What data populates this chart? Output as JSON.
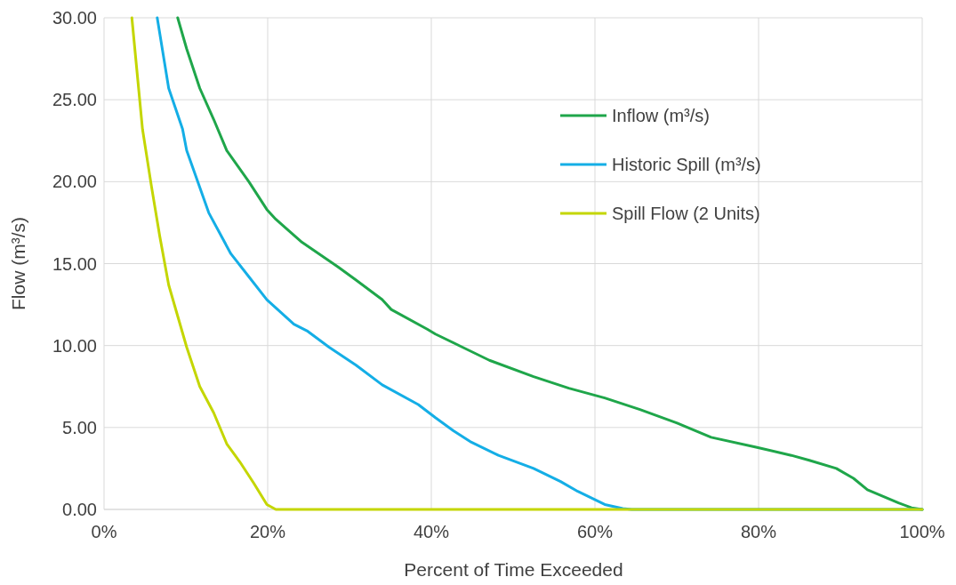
{
  "chart_data": {
    "type": "line",
    "xlabel": "Percent of Time Exceeded",
    "ylabel": "Flow (m³/s)",
    "xlim": [
      0,
      100
    ],
    "ylim": [
      0,
      30
    ],
    "xticks": [
      {
        "value": 0,
        "label": "0%"
      },
      {
        "value": 20,
        "label": "20%"
      },
      {
        "value": 40,
        "label": "40%"
      },
      {
        "value": 60,
        "label": "60%"
      },
      {
        "value": 80,
        "label": "80%"
      },
      {
        "value": 100,
        "label": "100%"
      }
    ],
    "yticks": [
      {
        "value": 0,
        "label": "0.00"
      },
      {
        "value": 5,
        "label": "5.00"
      },
      {
        "value": 10,
        "label": "10.00"
      },
      {
        "value": 15,
        "label": "15.00"
      },
      {
        "value": 20,
        "label": "20.00"
      },
      {
        "value": 25,
        "label": "25.00"
      },
      {
        "value": 30,
        "label": "30.00"
      }
    ],
    "grid": true,
    "legend": "top right",
    "marker": "none",
    "line_style": "solid",
    "series": [
      {
        "name": "Inflow (m³/s)",
        "color": "#1fa64a",
        "x": [
          9.0,
          10.1,
          11.7,
          13.4,
          15.0,
          17.7,
          19.9,
          21.0,
          24.2,
          28.6,
          30.8,
          34,
          35.1,
          39.5,
          40.5,
          43.8,
          47.1,
          52.5,
          56.8,
          61.2,
          65.5,
          69.9,
          74.2,
          79.7,
          84.0,
          86.2,
          89.5,
          91.6,
          93.3,
          97.1,
          98.7,
          100
        ],
        "values": [
          30,
          28.1,
          25.7,
          23.8,
          21.9,
          20.0,
          18.3,
          17.7,
          16.3,
          14.8,
          14.0,
          12.8,
          12.2,
          11.0,
          10.7,
          9.9,
          9.1,
          8.1,
          7.4,
          6.8,
          6.1,
          5.3,
          4.4,
          3.8,
          3.3,
          3.0,
          2.5,
          1.9,
          1.2,
          0.4,
          0.1,
          0
        ]
      },
      {
        "name": "Historic Spill (m³/s)",
        "color": "#14aee6",
        "x": [
          6.5,
          7.9,
          9.6,
          10.1,
          12.8,
          15.5,
          17.7,
          19.9,
          23.2,
          24.8,
          27.5,
          30.8,
          34,
          38.4,
          40.5,
          42.7,
          44.9,
          48.2,
          52.5,
          55.8,
          57.9,
          61.2,
          63.4,
          64.5,
          100
        ],
        "values": [
          30,
          25.7,
          23.2,
          21.9,
          18.1,
          15.6,
          14.2,
          12.8,
          11.3,
          10.9,
          9.9,
          8.8,
          7.6,
          6.4,
          5.6,
          4.8,
          4.1,
          3.3,
          2.5,
          1.7,
          1.1,
          0.3,
          0.05,
          0,
          0
        ]
      },
      {
        "name": "Spill Flow (2 Units)",
        "color": "#c4d600",
        "x": [
          3.4,
          4.7,
          5.8,
          6.8,
          7.9,
          9.0,
          10.1,
          11.7,
          13.4,
          15.0,
          16.6,
          18.3,
          19.9,
          21.0,
          100
        ],
        "values": [
          30,
          23.2,
          19.7,
          16.7,
          13.7,
          11.8,
          9.9,
          7.5,
          5.9,
          4.0,
          2.9,
          1.6,
          0.3,
          0,
          0
        ]
      }
    ]
  }
}
